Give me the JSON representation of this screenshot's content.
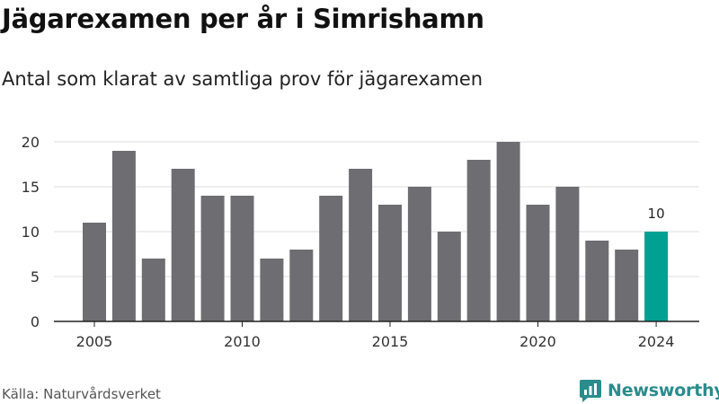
{
  "header": {
    "title": "Jägarexamen per år i Simrishamn",
    "subtitle": "Antal som klarat av samtliga prov för jägarexamen"
  },
  "footer": {
    "source": "Källa: Naturvårdsverket",
    "brand": "Newsworthy",
    "brand_icon": "newsworthy-logo-icon"
  },
  "colors": {
    "bar": "#6e6d72",
    "highlight": "#00a092",
    "grid": "#dddddd",
    "axis": "#222222",
    "brand": "#2a8c8c"
  },
  "chart_data": {
    "type": "bar",
    "title": "Jägarexamen per år i Simrishamn",
    "subtitle": "Antal som klarat av samtliga prov för jägarexamen",
    "xlabel": "",
    "ylabel": "",
    "x": [
      2005,
      2006,
      2007,
      2008,
      2009,
      2010,
      2011,
      2012,
      2013,
      2014,
      2015,
      2016,
      2017,
      2018,
      2019,
      2020,
      2021,
      2022,
      2023,
      2024
    ],
    "values": [
      11,
      19,
      7,
      17,
      14,
      14,
      7,
      8,
      14,
      17,
      13,
      15,
      10,
      18,
      20,
      13,
      15,
      9,
      8,
      10
    ],
    "highlight": {
      "x": 2024,
      "label": "10"
    },
    "ylim": [
      0,
      20
    ],
    "yticks": [
      0,
      5,
      10,
      15,
      20
    ],
    "xticks": [
      "2005",
      "2010",
      "2015",
      "2020",
      "2024"
    ],
    "grid": true
  }
}
